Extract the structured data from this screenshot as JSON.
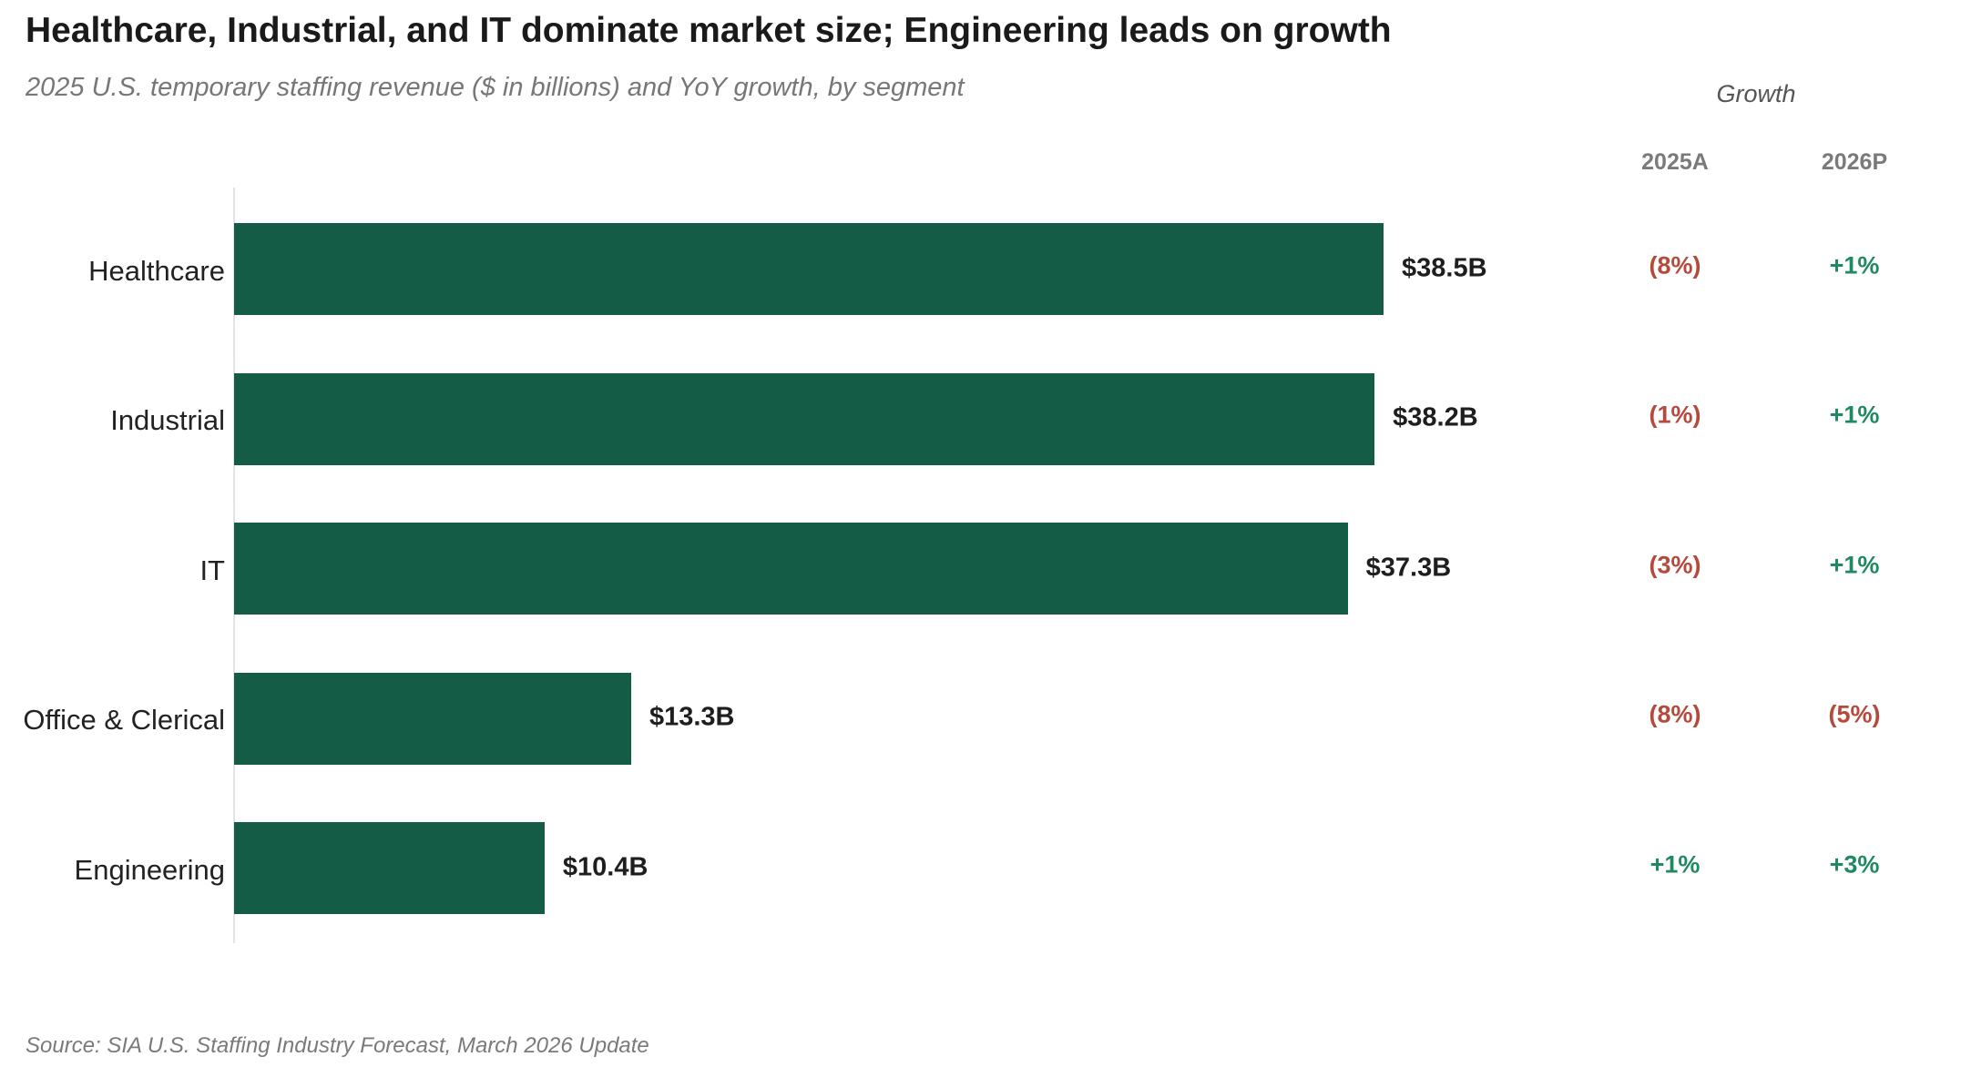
{
  "colors": {
    "bar": "#155c47",
    "negative": "#b54a3c",
    "positive": "#1f8a5f"
  },
  "chart_data": {
    "type": "bar",
    "orientation": "horizontal",
    "title": "Healthcare, Industrial, and IT dominate market size; Engineering leads on growth",
    "subtitle": "2025 U.S. temporary staffing revenue ($ in billions) and YoY growth, by segment",
    "source": "Source: SIA U.S. Staffing Industry Forecast, March 2026 Update",
    "categories": [
      "Healthcare",
      "Industrial",
      "IT",
      "Office & Clerical",
      "Engineering"
    ],
    "values": [
      38.5,
      38.2,
      37.3,
      13.3,
      10.4
    ],
    "value_labels": [
      "$38.5B",
      "$38.2B",
      "$37.3B",
      "$13.3B",
      "$10.4B"
    ],
    "xlim": [
      0,
      48
    ],
    "grid": false,
    "growth_table": {
      "header": "Growth",
      "columns": [
        "2025A",
        "2026P"
      ],
      "rows": [
        [
          "(8%)",
          "+1%"
        ],
        [
          "(1%)",
          "+1%"
        ],
        [
          "(3%)",
          "+1%"
        ],
        [
          "(8%)",
          "(5%)"
        ],
        [
          "+1%",
          "+3%"
        ]
      ],
      "signs": [
        [
          "negative",
          "positive"
        ],
        [
          "negative",
          "positive"
        ],
        [
          "negative",
          "positive"
        ],
        [
          "negative",
          "negative"
        ],
        [
          "positive",
          "positive"
        ]
      ]
    }
  }
}
